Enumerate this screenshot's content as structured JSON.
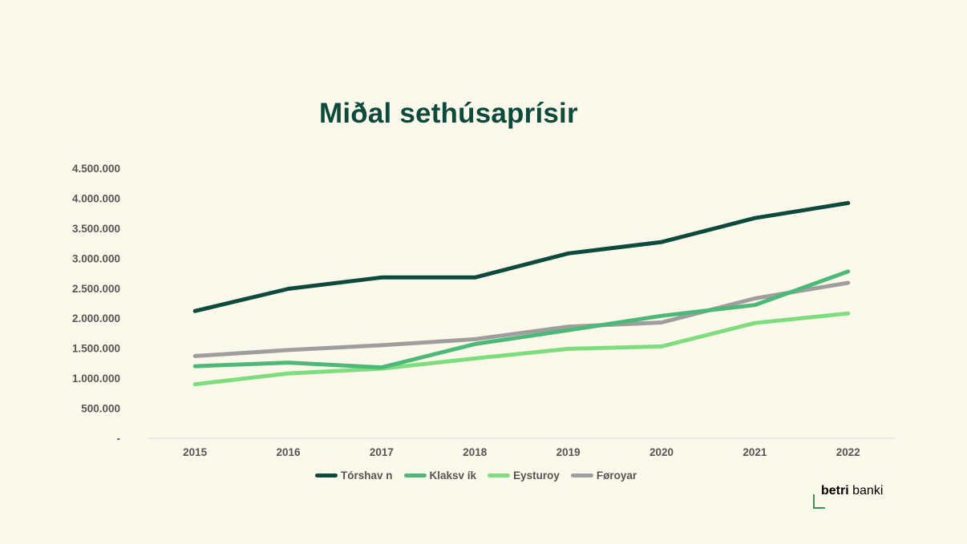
{
  "chart_data": {
    "type": "line",
    "title": "Miðal sethúsaprísir",
    "categories": [
      "2015",
      "2016",
      "2017",
      "2018",
      "2019",
      "2020",
      "2021",
      "2022"
    ],
    "y_ticks": [
      {
        "value": 0,
        "label": "-"
      },
      {
        "value": 500000,
        "label": "500.000"
      },
      {
        "value": 1000000,
        "label": "1.000.000"
      },
      {
        "value": 1500000,
        "label": "1.500.000"
      },
      {
        "value": 2000000,
        "label": "2.000.000"
      },
      {
        "value": 2500000,
        "label": "2.500.000"
      },
      {
        "value": 3000000,
        "label": "3.000.000"
      },
      {
        "value": 3500000,
        "label": "3.500.000"
      },
      {
        "value": 4000000,
        "label": "4.000.000"
      },
      {
        "value": 4500000,
        "label": "4.500.000"
      }
    ],
    "ylim": [
      0,
      4500000
    ],
    "xlabel": "",
    "ylabel": "",
    "grid": false,
    "legend_position": "bottom",
    "series": [
      {
        "name": "Tórshav n",
        "color": "#0b4a3d",
        "values": [
          2120000,
          2490000,
          2680000,
          2680000,
          3080000,
          3270000,
          3670000,
          3920000
        ]
      },
      {
        "name": "Klaksv ík",
        "color": "#4cb978",
        "values": [
          1200000,
          1260000,
          1180000,
          1570000,
          1800000,
          2040000,
          2220000,
          2780000
        ]
      },
      {
        "name": "Eysturoy",
        "color": "#7edd7e",
        "values": [
          900000,
          1080000,
          1160000,
          1330000,
          1490000,
          1530000,
          1920000,
          2080000
        ]
      },
      {
        "name": "Føroyar",
        "color": "#9e9e9e",
        "values": [
          1370000,
          1470000,
          1550000,
          1650000,
          1860000,
          1930000,
          2330000,
          2590000
        ]
      }
    ]
  },
  "brand": {
    "bold": "betri",
    "regular": " banki"
  }
}
